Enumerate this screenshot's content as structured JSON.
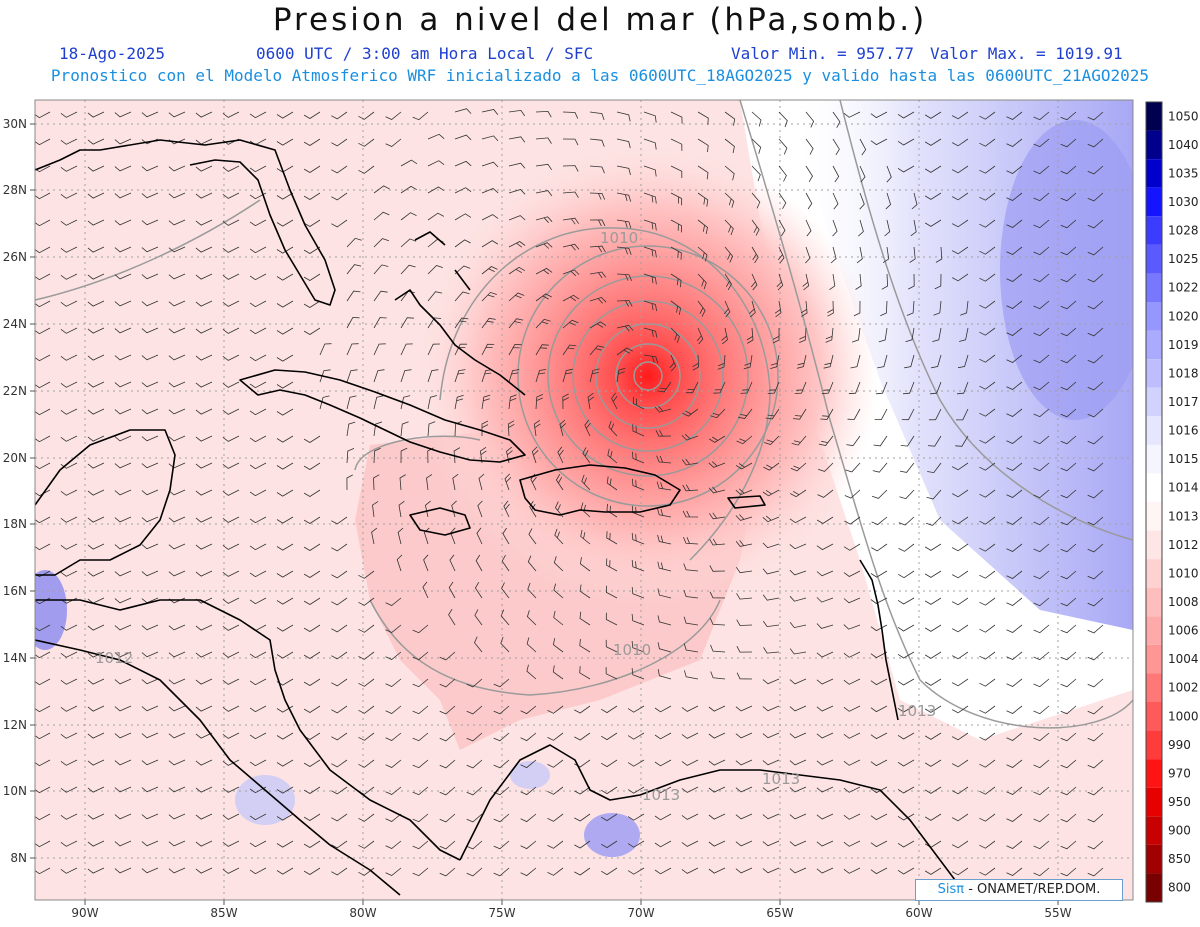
{
  "header": {
    "title": "Presion a nivel del mar (hPa,somb.)",
    "date": "18-Ago-2025",
    "time": "0600 UTC / 3:00 am Hora Local / SFC",
    "min_value": "Valor Min. = 957.77",
    "max_value": "Valor Max. = 1019.91",
    "subtitle": "Pronostico con el Modelo Atmosferico WRF inicializado a las 0600UTC_18AGO2025 y valido hasta las  0600UTC_21AGO2025"
  },
  "map": {
    "lon_labels": [
      "90W",
      "85W",
      "80W",
      "75W",
      "70W",
      "65W",
      "60W",
      "55W"
    ],
    "lat_labels": [
      "30N",
      "28N",
      "26N",
      "24N",
      "22N",
      "20N",
      "18N",
      "16N",
      "14N",
      "12N",
      "10N",
      "8N"
    ],
    "contour_labels": [
      "1010",
      "1012",
      "1010",
      "1013",
      "1013",
      "1013"
    ],
    "low_center": {
      "lon": -69.9,
      "lat": 22.5
    },
    "colors": {
      "land_outline": "#000000",
      "contour": "#9a9a9a",
      "grid": "#9a9a9a",
      "barb": "#333333",
      "low_core": "#ff1a1a",
      "high_blue": "#6b6bf0"
    }
  },
  "colorbar": {
    "levels": [
      "1050",
      "1040",
      "1035",
      "1030",
      "1028",
      "1025",
      "1022",
      "1020",
      "1019",
      "1018",
      "1017",
      "1016",
      "1015",
      "1014",
      "1013",
      "1012",
      "1010",
      "1008",
      "1006",
      "1004",
      "1002",
      "1000",
      "990",
      "970",
      "950",
      "900",
      "850",
      "800"
    ],
    "colors": [
      "#000050",
      "#00008c",
      "#0000cd",
      "#1414ff",
      "#3c3cff",
      "#5a5aff",
      "#7878ff",
      "#9696ff",
      "#aaaaff",
      "#bebeff",
      "#d2d2ff",
      "#e6e6ff",
      "#f5f5ff",
      "#ffffff",
      "#fff5f5",
      "#ffe6e6",
      "#ffd2d2",
      "#ffbebe",
      "#ffaaaa",
      "#ff9696",
      "#ff7878",
      "#ff5a5a",
      "#ff3c3c",
      "#ff1414",
      "#e60000",
      "#c80000",
      "#a00000",
      "#780000"
    ]
  },
  "credit": {
    "sis": "Sisπ",
    "org": " - ONAMET/REP.DOM."
  }
}
